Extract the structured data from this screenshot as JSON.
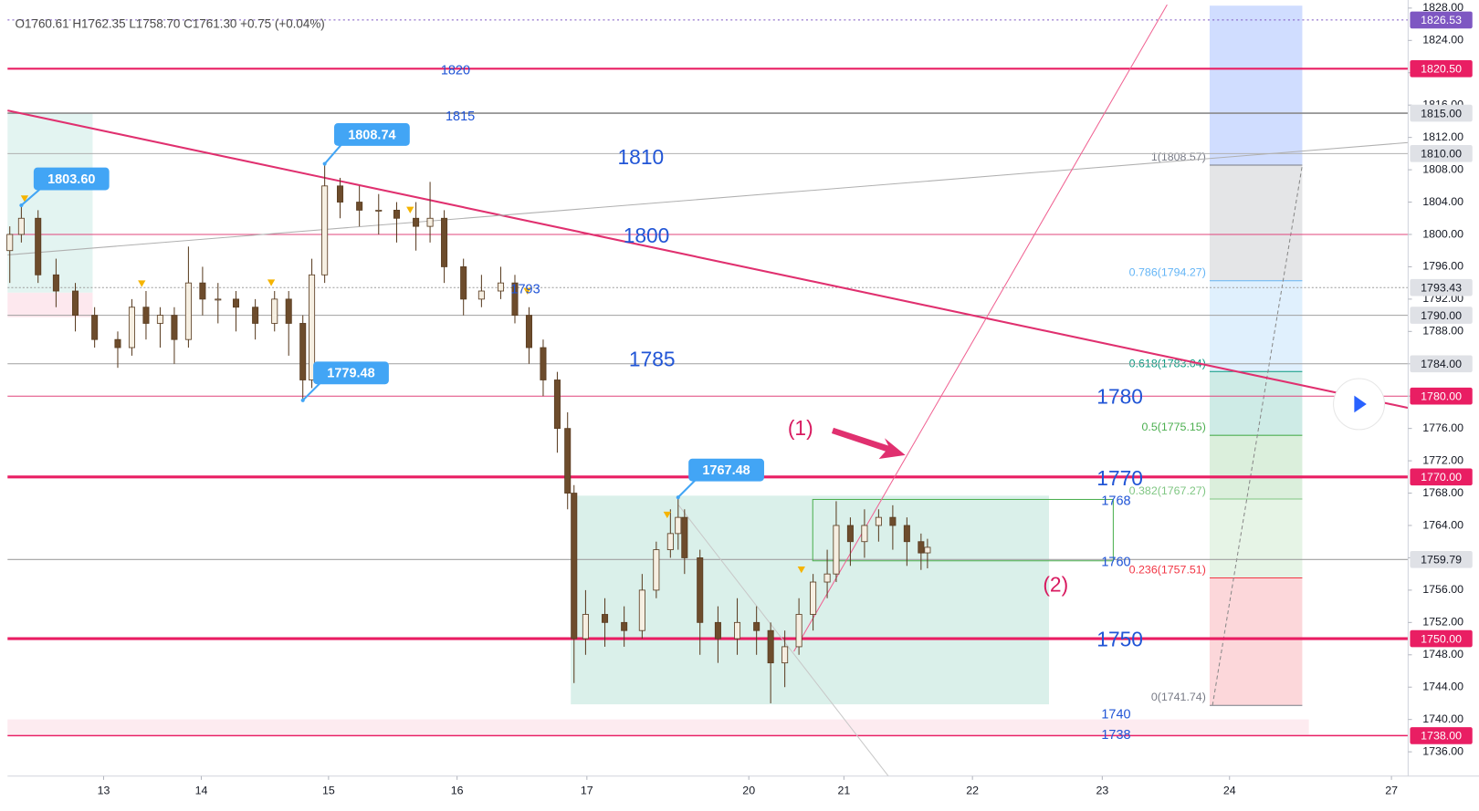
{
  "header": {
    "ohlc": "O1760.61 H1762.35 L1758.70 C1761.30 +0.75 (+0.04%)"
  },
  "chart_data": {
    "type": "candlestick",
    "x": [
      -0.49,
      -0.4,
      -0.27,
      -0.13,
      0.02,
      0.17,
      0.35,
      0.46,
      0.57,
      0.68,
      0.79,
      0.9,
      1.01,
      1.13,
      1.27,
      1.42,
      1.57,
      1.68,
      1.79,
      1.86,
      1.96,
      2.08,
      2.23,
      2.38,
      2.52,
      2.67,
      2.78,
      2.89,
      3.04,
      3.18,
      3.33,
      3.44,
      3.55,
      3.66,
      3.77,
      3.85,
      3.9,
      3.99,
      4.14,
      4.29,
      4.43,
      4.54,
      4.65,
      4.71,
      4.76,
      4.88,
      5.02,
      5.17,
      5.32,
      5.43,
      5.54,
      5.65,
      5.76,
      5.87,
      5.94,
      6.05,
      6.16,
      6.27,
      6.38,
      6.49,
      6.6,
      6.65
    ],
    "open": [
      1798,
      1800,
      1802,
      1795,
      1793,
      1790,
      1787,
      1786,
      1791,
      1789,
      1790,
      1787,
      1794,
      1792,
      1792,
      1791,
      1789,
      1792,
      1789,
      1782,
      1795,
      1806,
      1804,
      1803,
      1803,
      1802,
      1801,
      1802,
      1796,
      1792,
      1793,
      1794,
      1790,
      1786,
      1782,
      1776,
      1768,
      1750,
      1753,
      1752,
      1751,
      1756,
      1761,
      1763,
      1765,
      1760,
      1752,
      1750,
      1752,
      1751,
      1747,
      1749,
      1753,
      1757,
      1758,
      1764,
      1762,
      1764,
      1765,
      1764,
      1762,
      1760.61
    ],
    "high": [
      1801,
      1803.6,
      1803,
      1797,
      1794,
      1791,
      1788,
      1792,
      1793,
      1791,
      1791,
      1798.5,
      1796,
      1794,
      1793,
      1792,
      1793,
      1793,
      1790,
      1797,
      1808.74,
      1807,
      1806,
      1805,
      1804,
      1804,
      1806.5,
      1803,
      1797,
      1795,
      1796,
      1795,
      1791,
      1787,
      1783,
      1778,
      1769,
      1756,
      1755,
      1754,
      1758,
      1762,
      1766,
      1767.48,
      1766,
      1761,
      1754,
      1755,
      1754,
      1752,
      1751,
      1755,
      1758,
      1761,
      1767,
      1765,
      1766,
      1766,
      1766.5,
      1765,
      1763,
      1762.35
    ],
    "low": [
      1794,
      1799,
      1794,
      1791,
      1788,
      1786,
      1783.5,
      1785,
      1787,
      1786,
      1784,
      1786,
      1790,
      1789,
      1788,
      1787,
      1788,
      1785,
      1779.48,
      1781,
      1794,
      1802,
      1801,
      1800,
      1799,
      1798,
      1799,
      1794,
      1790,
      1791,
      1792,
      1789,
      1784,
      1780,
      1773,
      1766,
      1744.5,
      1748,
      1749,
      1749,
      1750,
      1755,
      1760,
      1761,
      1758,
      1748,
      1747,
      1748,
      1748,
      1742,
      1744,
      1748,
      1751,
      1755,
      1757,
      1759,
      1760,
      1762,
      1761,
      1759,
      1758.5,
      1758.7
    ],
    "close": [
      1800,
      1802,
      1795,
      1793,
      1790,
      1787,
      1786,
      1791,
      1789,
      1790,
      1787,
      1794,
      1792,
      1792,
      1791,
      1789,
      1792,
      1789,
      1782,
      1795,
      1806,
      1804,
      1803,
      1803,
      1802,
      1801,
      1802,
      1796,
      1792,
      1793,
      1794,
      1790,
      1786,
      1782,
      1776,
      1768,
      1750,
      1753,
      1752,
      1751,
      1756,
      1761,
      1763,
      1765,
      1760,
      1752,
      1750,
      1752,
      1751,
      1747,
      1749,
      1753,
      1757,
      1758,
      1764,
      1762,
      1764,
      1765,
      1764,
      1762,
      1760.6,
      1761.3
    ],
    "colors": {
      "up": "#f6efe2",
      "down": "#6d4c2c",
      "wick": "#5a3d22"
    },
    "xlim": [
      -0.5,
      10.4
    ],
    "xticks": [
      {
        "value": 0.24,
        "label": "13"
      },
      {
        "value": 1,
        "label": "14"
      },
      {
        "value": 1.99,
        "label": "15"
      },
      {
        "value": 2.99,
        "label": "16"
      },
      {
        "value": 4,
        "label": "17"
      },
      {
        "value": 5.26,
        "label": "20"
      },
      {
        "value": 6,
        "label": "21"
      },
      {
        "value": 7,
        "label": "22"
      },
      {
        "value": 8.01,
        "label": "23"
      },
      {
        "value": 9,
        "label": "24"
      },
      {
        "value": 10.26,
        "label": "27"
      }
    ],
    "ylim": [
      1733,
      1829
    ],
    "yticks": [
      {
        "value": 1736,
        "label": "1736.00"
      },
      {
        "value": 1740,
        "label": "1740.00"
      },
      {
        "value": 1744,
        "label": "1744.00"
      },
      {
        "value": 1748,
        "label": "1748.00"
      },
      {
        "value": 1752,
        "label": "1752.00"
      },
      {
        "value": 1756,
        "label": "1756.00"
      },
      {
        "value": 1760,
        "label": "1760.00"
      },
      {
        "value": 1764,
        "label": "1764.00"
      },
      {
        "value": 1768,
        "label": "1768.00"
      },
      {
        "value": 1772,
        "label": "1772.00"
      },
      {
        "value": 1776,
        "label": "1776.00"
      },
      {
        "value": 1780,
        "label": "1780.00"
      },
      {
        "value": 1784,
        "label": "1784.00"
      },
      {
        "value": 1788,
        "label": "1788.00"
      },
      {
        "value": 1792,
        "label": "1792.00"
      },
      {
        "value": 1796,
        "label": "1796.00"
      },
      {
        "value": 1800,
        "label": "1800.00"
      },
      {
        "value": 1804,
        "label": "1804.00"
      },
      {
        "value": 1808,
        "label": "1808.00"
      },
      {
        "value": 1812,
        "label": "1812.00"
      },
      {
        "value": 1816,
        "label": "1816.00"
      },
      {
        "value": 1820,
        "label": "1820.00"
      },
      {
        "value": 1824,
        "label": "1824.00"
      },
      {
        "value": 1828,
        "label": "1828.00"
      }
    ],
    "price_lines": [
      {
        "value": 1826.53,
        "label": "1826.53",
        "color": "#7e57c2",
        "width": 1,
        "dash": "2 3",
        "label_bg": "#7e57c2",
        "label_fg": "#ffffff"
      },
      {
        "value": 1820.5,
        "label": "1820.50",
        "color": "#e91e63",
        "width": 2,
        "label_bg": "#e91e63",
        "label_fg": "#ffffff"
      },
      {
        "value": 1815,
        "label": "1815.00",
        "color": "#8a8a8a",
        "width": 1.5,
        "label_bg": "#dfe1e6",
        "label_fg": "#131722"
      },
      {
        "value": 1810,
        "label": "1810.00",
        "color": "#b0b0b0",
        "width": 1,
        "label_bg": "#dfe1e6",
        "label_fg": "#131722"
      },
      {
        "value": 1800,
        "color": "#e0457b",
        "width": 1
      },
      {
        "value": 1793.43,
        "label": "1793.43",
        "color": "#9e9e9e",
        "width": 1,
        "dash": "2 2",
        "label_bg": "#dfe1e6",
        "label_fg": "#131722"
      },
      {
        "value": 1790,
        "label": "1790.00",
        "color": "#a0a0a0",
        "width": 1,
        "label_bg": "#dfe1e6",
        "label_fg": "#131722"
      },
      {
        "value": 1784,
        "label": "1784.00",
        "color": "#a0a0a0",
        "width": 1,
        "label_bg": "#dfe1e6",
        "label_fg": "#131722"
      },
      {
        "value": 1780,
        "label": "1780.00",
        "color": "#e0457b",
        "width": 1,
        "label_bg": "#e91e63",
        "label_fg": "#ffffff"
      },
      {
        "value": 1770,
        "label": "1770.00",
        "color": "#e91e63",
        "width": 3,
        "label_bg": "#e91e63",
        "label_fg": "#ffffff"
      },
      {
        "value": 1759.79,
        "label": "1759.79",
        "color": "#a0a0a0",
        "width": 1,
        "label_bg": "#dfe1e6",
        "label_fg": "#131722"
      },
      {
        "value": 1750,
        "label": "1750.00",
        "color": "#e91e63",
        "width": 3,
        "label_bg": "#e91e63",
        "label_fg": "#ffffff"
      },
      {
        "value": 1738,
        "label": "1738.00",
        "color": "#e91e63",
        "width": 1.5,
        "label_bg": "#e91e63",
        "label_fg": "#ffffff"
      }
    ],
    "callouts": [
      {
        "x": -0.4,
        "value": 1803.6,
        "label": "1803.60"
      },
      {
        "x": 1.96,
        "value": 1808.74,
        "label": "1808.74"
      },
      {
        "x": 1.79,
        "value": 1779.48,
        "label": "1779.48"
      },
      {
        "x": 4.71,
        "value": 1767.48,
        "label": "1767.48"
      }
    ],
    "fib": [
      {
        "ratio": 1,
        "price": 1808.57,
        "label": "1(1808.57)",
        "color": "#787b86"
      },
      {
        "ratio": 0.786,
        "price": 1794.27,
        "label": "0.786(1794.27)",
        "color": "#64b5f6"
      },
      {
        "ratio": 0.618,
        "price": 1783.04,
        "label": "0.618(1783.04)",
        "color": "#089981"
      },
      {
        "ratio": 0.5,
        "price": 1775.15,
        "label": "0.5(1775.15)",
        "color": "#4caf50"
      },
      {
        "ratio": 0.382,
        "price": 1767.27,
        "label": "0.382(1767.27)",
        "color": "#81c784"
      },
      {
        "ratio": 0.236,
        "price": 1757.51,
        "label": "0.236(1757.51)",
        "color": "#f23645"
      },
      {
        "ratio": 0,
        "price": 1741.74,
        "label": "0(1741.74)",
        "color": "#787b86"
      }
    ],
    "annotations": [
      {
        "text": "1820",
        "color": "#2155d6"
      },
      {
        "text": "1815",
        "color": "#2155d6"
      },
      {
        "text": "1810",
        "color": "#2155d6"
      },
      {
        "text": "1800",
        "color": "#2155d6"
      },
      {
        "text": "1785",
        "color": "#2155d6"
      },
      {
        "text": "1780",
        "color": "#2155d6"
      },
      {
        "text": "1770",
        "color": "#2155d6"
      },
      {
        "text": "1768",
        "color": "#2155d6"
      },
      {
        "text": "1760",
        "color": "#2155d6"
      },
      {
        "text": "1750",
        "color": "#2155d6"
      },
      {
        "text": "1740",
        "color": "#2155d6"
      },
      {
        "text": "1738",
        "color": "#2155d6"
      },
      {
        "text": "1793",
        "color": "#2155d6"
      },
      {
        "text": "(1)",
        "color": "#d81b60"
      },
      {
        "text": "(2)",
        "color": "#d81b60"
      }
    ]
  }
}
